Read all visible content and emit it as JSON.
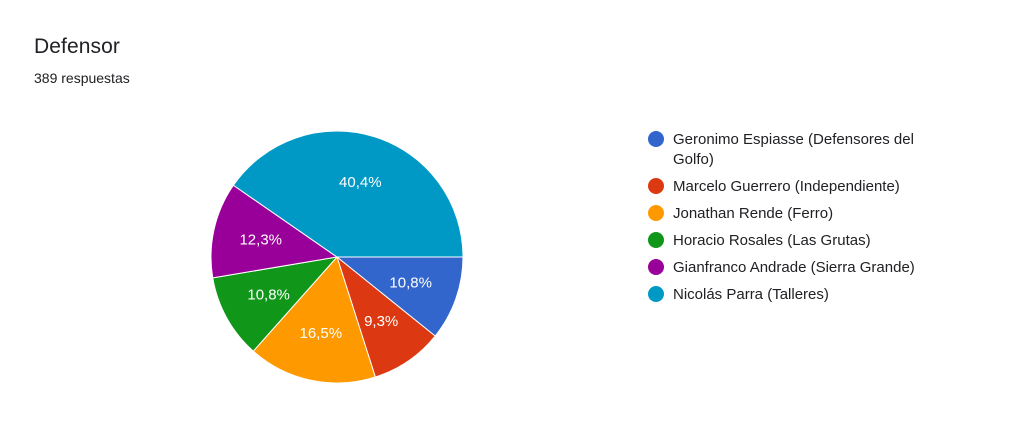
{
  "title": "Defensor",
  "subtitle": "389 respuestas",
  "colors": {
    "blue": "#3366cc",
    "red": "#dc3912",
    "orange": "#ff9900",
    "green": "#109618",
    "purple": "#990099",
    "teal": "#0099c6"
  },
  "chart_data": {
    "type": "pie",
    "title": "Defensor",
    "subtitle": "389 respuestas",
    "legend_position": "right",
    "slices": [
      {
        "label": "Geronimo Espiasse (Defensores del Golfo)",
        "value": 10.8,
        "display": "10,8%",
        "color": "#3366cc"
      },
      {
        "label": "Marcelo Guerrero (Independiente)",
        "value": 9.3,
        "display": "9,3%",
        "color": "#dc3912"
      },
      {
        "label": "Jonathan Rende (Ferro)",
        "value": 16.5,
        "display": "16,5%",
        "color": "#ff9900"
      },
      {
        "label": "Horacio Rosales (Las Grutas)",
        "value": 10.8,
        "display": "10,8%",
        "color": "#109618"
      },
      {
        "label": "Gianfranco Andrade (Sierra Grande)",
        "value": 12.3,
        "display": "12,3%",
        "color": "#990099"
      },
      {
        "label": "Nicolás Parra (Talleres)",
        "value": 40.4,
        "display": "40,4%",
        "color": "#0099c6"
      }
    ]
  }
}
